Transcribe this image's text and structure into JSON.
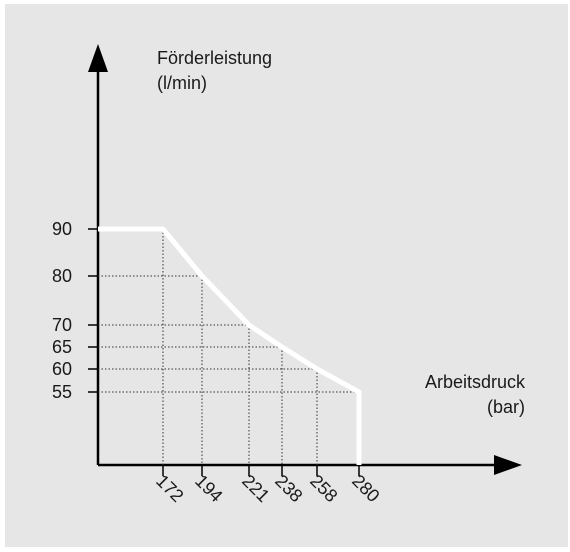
{
  "chart_data": {
    "type": "line",
    "ylabel_line1": "Förderleistung",
    "ylabel_line2": "(l/min)",
    "xlabel_line1": "Arbeitsdruck",
    "xlabel_line2": "(bar)",
    "x_ticks": [
      "172",
      "194",
      "221",
      "238",
      "258",
      "280"
    ],
    "y_ticks": [
      "55",
      "60",
      "65",
      "70",
      "80",
      "90"
    ],
    "series": [
      {
        "points": [
          {
            "x": 0,
            "y": 90
          },
          {
            "x": 172,
            "y": 90
          },
          {
            "x": 194,
            "y": 80
          },
          {
            "x": 221,
            "y": 70
          },
          {
            "x": 238,
            "y": 65
          },
          {
            "x": 258,
            "y": 60
          },
          {
            "x": 280,
            "y": 55
          },
          {
            "x": 280,
            "y": 0
          }
        ]
      }
    ],
    "grid": "dotted guide lines at marked points",
    "colors": {
      "background": "#e6e6e6",
      "curve": "#ffffff",
      "axis": "#000000"
    }
  }
}
